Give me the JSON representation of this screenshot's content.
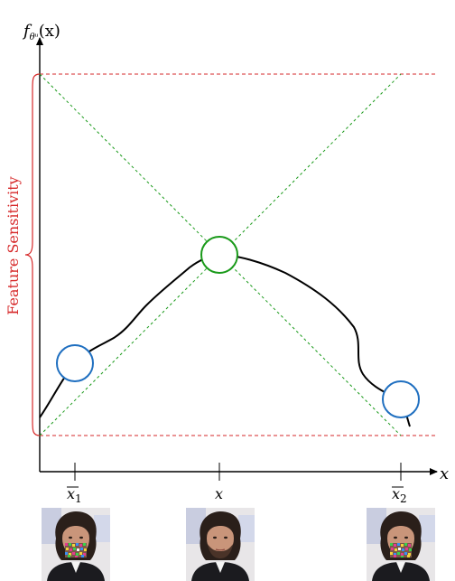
{
  "y_axis_label": "f",
  "y_axis_subscript": "θᵘ",
  "y_axis_arg": "(x)",
  "x_axis_label": "x",
  "sensitivity_label": "Feature Sensitivity",
  "ticks": [
    {
      "label": "x",
      "sub": "1",
      "bar": true
    },
    {
      "label": "x",
      "sub": "",
      "bar": false
    },
    {
      "label": "x",
      "sub": "2",
      "bar": true
    }
  ],
  "faces": [
    {
      "name": "perturbed-left",
      "perturbed": true
    },
    {
      "name": "original",
      "perturbed": false
    },
    {
      "name": "perturbed-right",
      "perturbed": true
    }
  ],
  "colors": {
    "curve": "#000000",
    "red_dashed": "#d62728",
    "green_dotted": "#1a9a1a",
    "green_circle": "#1a9a1a",
    "blue_circle": "#1f6fc0"
  }
}
